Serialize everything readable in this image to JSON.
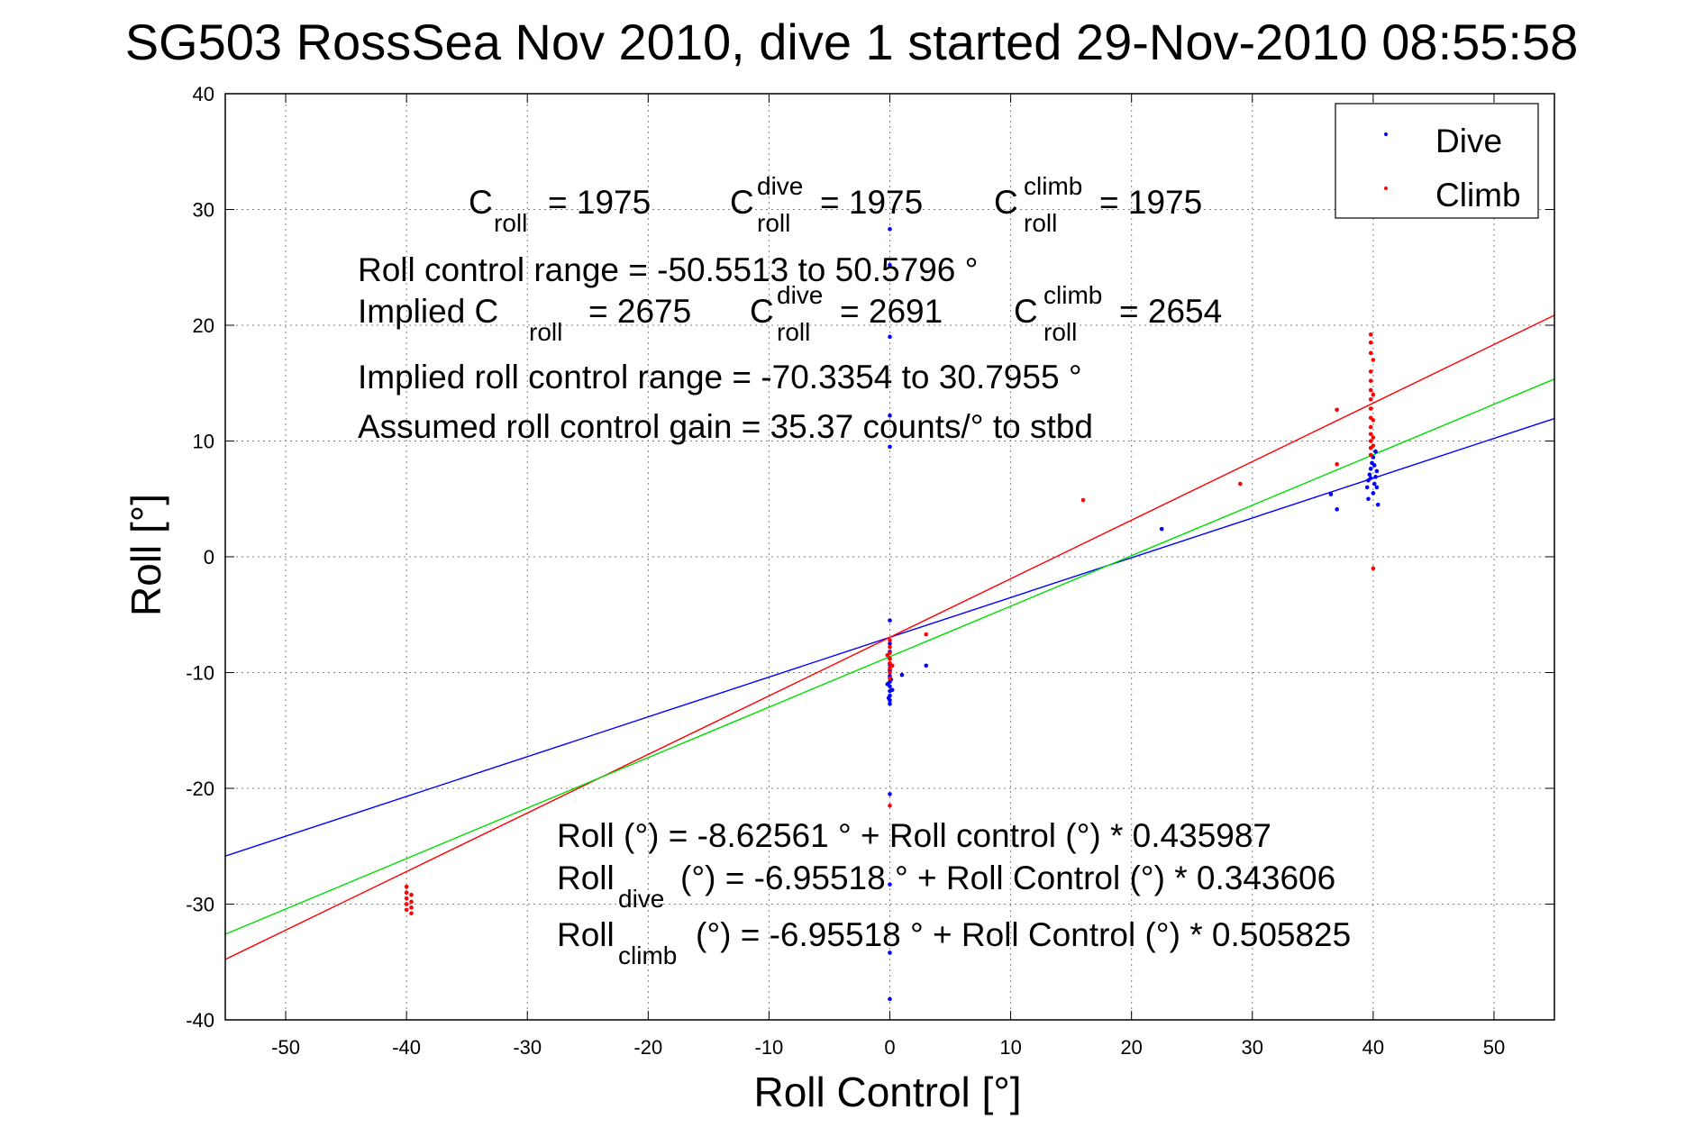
{
  "colors": {
    "dive": "#0000ff",
    "climb": "#ff0000",
    "overall_fit": "#00dd00",
    "axes": "#000000",
    "grid": "#808080"
  },
  "chart_data": {
    "type": "scatter",
    "title": "SG503 RossSea Nov 2010, dive 1 started 29-Nov-2010 08:55:58",
    "xlabel": "Roll Control [°]",
    "ylabel": "Roll [°]",
    "xlim": [
      -55,
      55
    ],
    "ylim": [
      -40,
      40
    ],
    "xticks": [
      -50,
      -40,
      -30,
      -20,
      -10,
      0,
      10,
      20,
      30,
      40,
      50
    ],
    "yticks": [
      -40,
      -30,
      -20,
      -10,
      0,
      10,
      20,
      30,
      40
    ],
    "grid": true,
    "legend": {
      "position": "top-right",
      "entries": [
        "Dive",
        "Climb"
      ]
    },
    "series": [
      {
        "name": "Dive",
        "color": "#0000ff",
        "points": [
          [
            0,
            28.3
          ],
          [
            0,
            25.2
          ],
          [
            0,
            19.0
          ],
          [
            0,
            12.2
          ],
          [
            0,
            9.5
          ],
          [
            0,
            -5.5
          ],
          [
            0,
            -7.5
          ],
          [
            0,
            -8.2
          ],
          [
            0,
            -8.8
          ],
          [
            0,
            -9.3
          ],
          [
            0,
            -9.8
          ],
          [
            0,
            -10.3
          ],
          [
            0,
            -10.8
          ],
          [
            0,
            -11.2
          ],
          [
            0,
            -11.6
          ],
          [
            0,
            -12.0
          ],
          [
            0,
            -12.4
          ],
          [
            0,
            -12.7
          ],
          [
            -0.2,
            -11.0
          ],
          [
            0.2,
            -11.5
          ],
          [
            -0.1,
            -12.2
          ],
          [
            0.1,
            -10.6
          ],
          [
            0,
            -20.5
          ],
          [
            0,
            -28.3
          ],
          [
            0,
            -34.2
          ],
          [
            0,
            -38.2
          ],
          [
            1.0,
            -10.2
          ],
          [
            3.0,
            -9.4
          ],
          [
            22.5,
            2.4
          ],
          [
            36.5,
            5.4
          ],
          [
            37.0,
            4.1
          ],
          [
            39.5,
            6.0
          ],
          [
            39.6,
            6.6
          ],
          [
            39.7,
            7.1
          ],
          [
            39.8,
            7.6
          ],
          [
            39.9,
            8.1
          ],
          [
            40.0,
            5.5
          ],
          [
            40.1,
            6.3
          ],
          [
            40.2,
            6.9
          ],
          [
            40.3,
            7.4
          ],
          [
            40.4,
            4.5
          ],
          [
            39.6,
            5.0
          ],
          [
            40.0,
            8.6
          ],
          [
            40.2,
            9.1
          ],
          [
            39.8,
            6.8
          ],
          [
            40.1,
            7.9
          ],
          [
            40.3,
            6.0
          ]
        ]
      },
      {
        "name": "Climb",
        "color": "#ff0000",
        "points": [
          [
            -40,
            -28.5
          ],
          [
            -40,
            -29.0
          ],
          [
            -40,
            -29.5
          ],
          [
            -40,
            -30.0
          ],
          [
            -40,
            -30.5
          ],
          [
            -39.6,
            -29.2
          ],
          [
            -39.6,
            -29.8
          ],
          [
            -39.6,
            -30.3
          ],
          [
            -39.6,
            -30.8
          ],
          [
            0,
            -7.2
          ],
          [
            0,
            -7.8
          ],
          [
            0,
            -8.3
          ],
          [
            0,
            -8.8
          ],
          [
            0,
            -9.2
          ],
          [
            0,
            -9.6
          ],
          [
            0,
            -10.0
          ],
          [
            0,
            -10.5
          ],
          [
            -0.2,
            -8.5
          ],
          [
            0.2,
            -9.4
          ],
          [
            0,
            -21.5
          ],
          [
            3.0,
            -6.7
          ],
          [
            16.0,
            4.9
          ],
          [
            29.0,
            6.3
          ],
          [
            37.0,
            12.7
          ],
          [
            37.0,
            8.0
          ],
          [
            39.8,
            19.2
          ],
          [
            39.8,
            18.5
          ],
          [
            39.8,
            17.6
          ],
          [
            39.8,
            16.0
          ],
          [
            39.8,
            15.2
          ],
          [
            39.8,
            14.4
          ],
          [
            39.8,
            13.6
          ],
          [
            39.8,
            12.8
          ],
          [
            39.8,
            12.0
          ],
          [
            39.8,
            11.2
          ],
          [
            39.8,
            10.6
          ],
          [
            39.8,
            10.0
          ],
          [
            39.8,
            9.4
          ],
          [
            39.8,
            8.8
          ],
          [
            40.0,
            17.0
          ],
          [
            40.0,
            14.0
          ],
          [
            40.0,
            11.8
          ],
          [
            40.0,
            10.3
          ],
          [
            40.0,
            9.6
          ],
          [
            40.0,
            -1.0
          ]
        ]
      }
    ],
    "fit_lines": [
      {
        "name": "Dive fit",
        "color": "#0000ff",
        "intercept": -6.95518,
        "slope": 0.343606
      },
      {
        "name": "Climb fit",
        "color": "#ff0000",
        "intercept": -6.95518,
        "slope": 0.505825
      },
      {
        "name": "Overall fit",
        "color": "#00dd00",
        "intercept": -8.62561,
        "slope": 0.435987
      }
    ]
  },
  "annotations": {
    "c_roll": "C",
    "c_roll_sub": "roll",
    "c_roll_val": "= 1975",
    "c_dive": "C",
    "c_dive_sup": "dive",
    "c_dive_sub": "roll",
    "c_dive_val": "= 1975",
    "c_climb": "C",
    "c_climb_sup": "climb",
    "c_climb_sub": "roll",
    "c_climb_val": "= 1975",
    "range_line": "Roll control range = -50.5513 to 50.5796 °",
    "implied_prefix": "Implied C",
    "implied_sub": "roll",
    "implied_val": "= 2675",
    "implied_dive": "C",
    "implied_dive_sup": "dive",
    "implied_dive_sub": "roll",
    "implied_dive_val": "= 2691",
    "implied_climb": "C",
    "implied_climb_sup": "climb",
    "implied_climb_sub": "roll",
    "implied_climb_val": "= 2654",
    "implied_range": "Implied roll control range = -70.3354 to 30.7955 °",
    "gain_line": "Assumed roll control gain = 35.37 counts/° to stbd",
    "eq1": "Roll (°) = -8.62561 ° + Roll control (°) * 0.435987",
    "eq2_prefix": "Roll",
    "eq2_sub": "dive",
    "eq2_rest": "(°) = -6.95518 ° + Roll Control (°) * 0.343606",
    "eq3_prefix": "Roll",
    "eq3_sub": "climb",
    "eq3_rest": "(°) = -6.95518 ° + Roll Control (°) * 0.505825"
  }
}
